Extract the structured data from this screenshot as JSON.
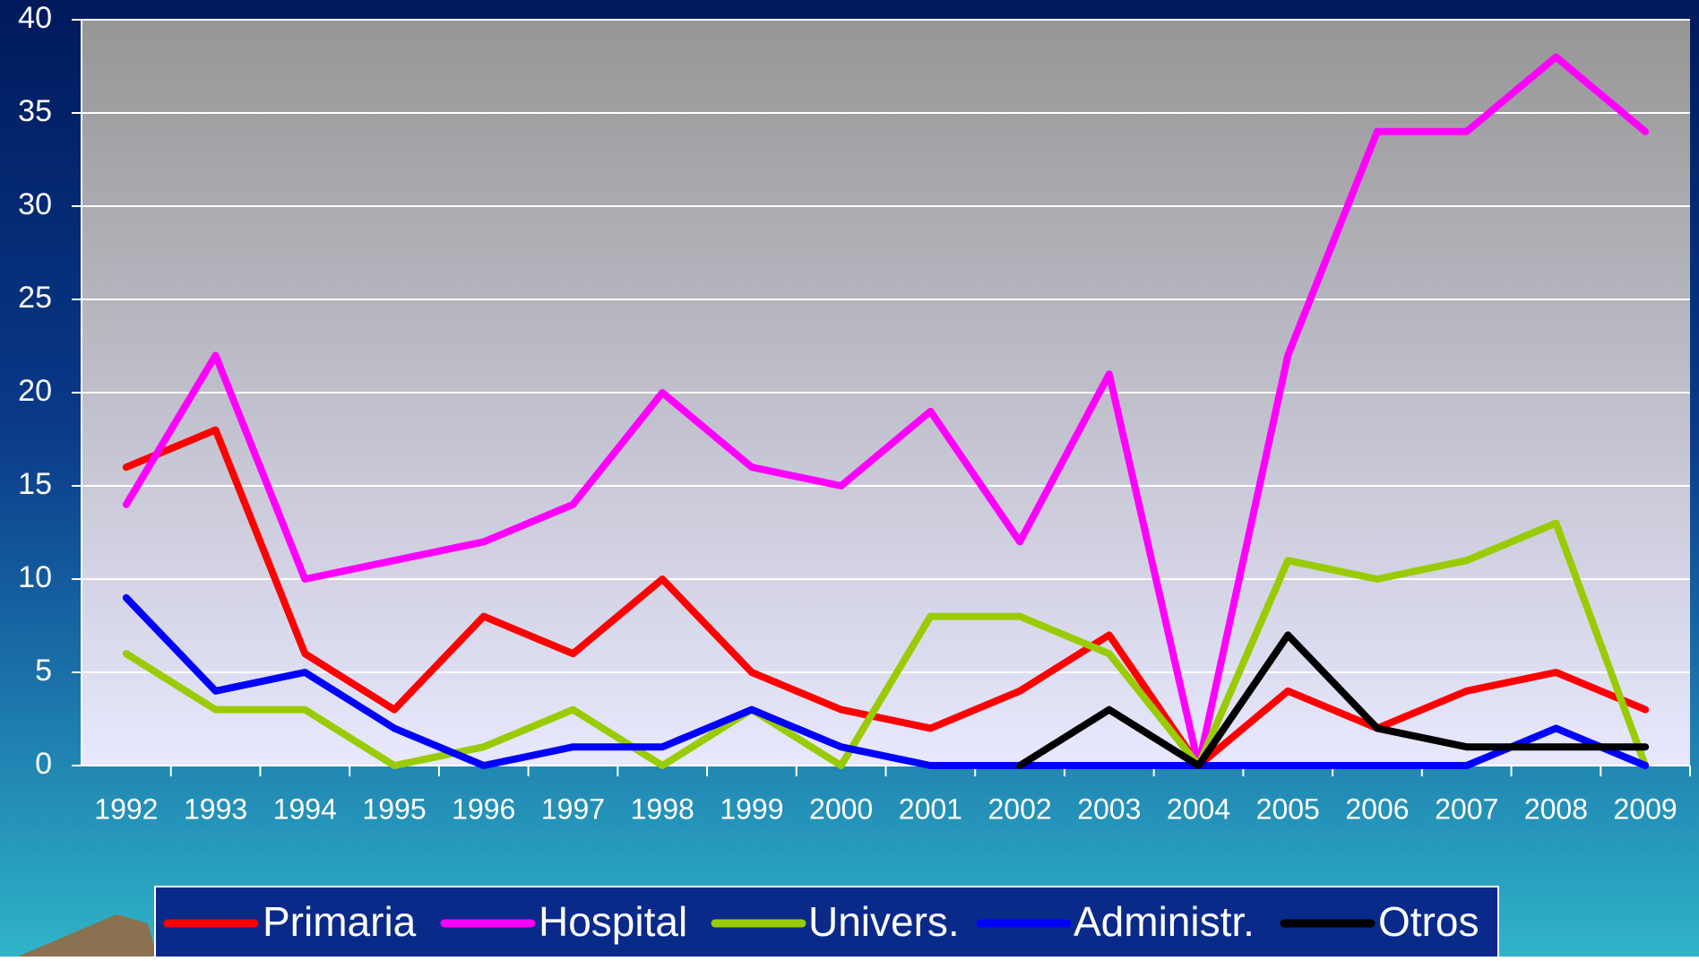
{
  "chart_data": {
    "type": "line",
    "categories": [
      "1992",
      "1993",
      "1994",
      "1995",
      "1996",
      "1997",
      "1998",
      "1999",
      "2000",
      "2001",
      "2002",
      "2003",
      "2004",
      "2005",
      "2006",
      "2007",
      "2008",
      "2009"
    ],
    "series": [
      {
        "name": "Primaria",
        "color": "#ff0000",
        "values": [
          16,
          18,
          6,
          3,
          8,
          6,
          10,
          5,
          3,
          2,
          4,
          7,
          0,
          4,
          2,
          4,
          5,
          3
        ]
      },
      {
        "name": "Hospital",
        "color": "#ff00ff",
        "values": [
          14,
          22,
          10,
          11,
          12,
          14,
          20,
          16,
          15,
          19,
          12,
          21,
          0,
          22,
          34,
          34,
          38,
          34
        ]
      },
      {
        "name": "Univers.",
        "color": "#99cc00",
        "values": [
          6,
          3,
          3,
          0,
          1,
          3,
          0,
          3,
          0,
          8,
          8,
          6,
          0,
          11,
          10,
          11,
          13,
          0
        ]
      },
      {
        "name": "Administr.",
        "color": "#0000ff",
        "values": [
          9,
          4,
          5,
          2,
          0,
          1,
          1,
          3,
          1,
          0,
          0,
          0,
          0,
          0,
          0,
          0,
          2,
          0
        ]
      },
      {
        "name": "Otros",
        "color": "#000000",
        "values": [
          null,
          null,
          null,
          null,
          null,
          null,
          null,
          null,
          null,
          null,
          0,
          3,
          0,
          7,
          2,
          1,
          1,
          1
        ]
      }
    ],
    "ylim": [
      0,
      40
    ],
    "yticks": [
      0,
      5,
      10,
      15,
      20,
      25,
      30,
      35,
      40
    ],
    "grid": true,
    "legend": "bottom"
  }
}
